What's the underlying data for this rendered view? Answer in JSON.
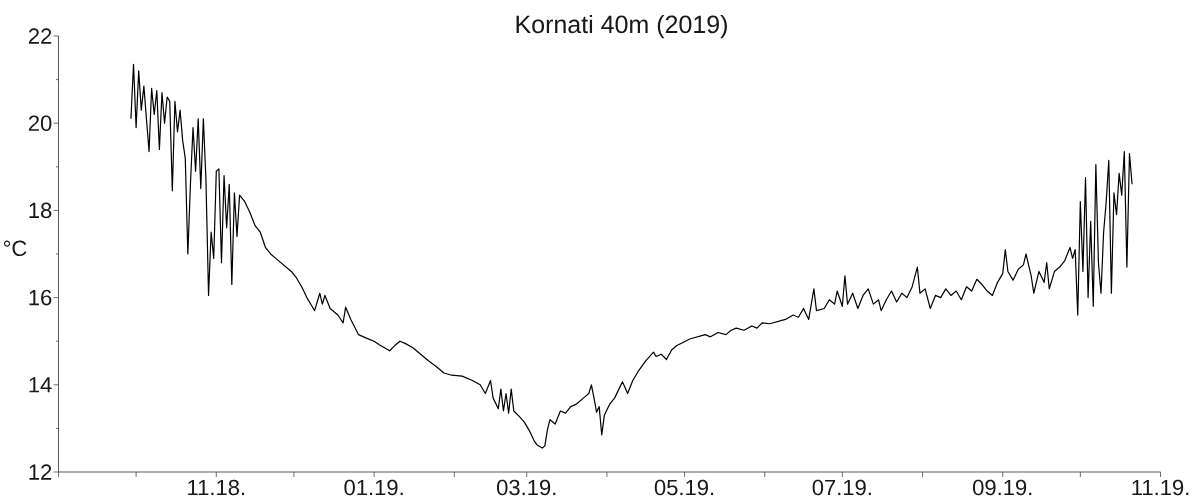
{
  "chart_data": {
    "type": "line",
    "title": "Kornati 40m (2019)",
    "ylabel": "°C",
    "x": [
      "2018-09-29",
      "2018-09-30",
      "2018-10-01",
      "2018-10-02",
      "2018-10-03",
      "2018-10-04",
      "2018-10-05",
      "2018-10-06",
      "2018-10-07",
      "2018-10-08",
      "2018-10-09",
      "2018-10-10",
      "2018-10-11",
      "2018-10-12",
      "2018-10-13",
      "2018-10-14",
      "2018-10-15",
      "2018-10-16",
      "2018-10-17",
      "2018-10-18",
      "2018-10-19",
      "2018-10-20",
      "2018-10-21",
      "2018-10-22",
      "2018-10-23",
      "2018-10-24",
      "2018-10-25",
      "2018-10-26",
      "2018-10-27",
      "2018-10-28",
      "2018-10-29",
      "2018-10-30",
      "2018-10-31",
      "2018-11-01",
      "2018-11-02",
      "2018-11-03",
      "2018-11-04",
      "2018-11-05",
      "2018-11-06",
      "2018-11-07",
      "2018-11-08",
      "2018-11-09",
      "2018-11-10",
      "2018-11-12",
      "2018-11-14",
      "2018-11-16",
      "2018-11-18",
      "2018-11-20",
      "2018-11-22",
      "2018-11-24",
      "2018-11-27",
      "2018-11-30",
      "2018-12-02",
      "2018-12-04",
      "2018-12-06",
      "2018-12-08",
      "2018-12-09",
      "2018-12-11",
      "2018-12-12",
      "2018-12-13",
      "2018-12-15",
      "2018-12-18",
      "2018-12-20",
      "2018-12-21",
      "2018-12-23",
      "2018-12-26",
      "2018-12-29",
      "2019-01-01",
      "2019-01-03",
      "2019-01-05",
      "2019-01-07",
      "2019-01-09",
      "2019-01-11",
      "2019-01-13",
      "2019-01-16",
      "2019-01-19",
      "2019-01-22",
      "2019-01-25",
      "2019-01-28",
      "2019-01-31",
      "2019-02-04",
      "2019-02-08",
      "2019-02-11",
      "2019-02-13",
      "2019-02-15",
      "2019-02-16",
      "2019-02-18",
      "2019-02-19",
      "2019-02-20",
      "2019-02-21",
      "2019-02-22",
      "2019-02-23",
      "2019-02-24",
      "2019-02-26",
      "2019-02-28",
      "2019-03-02",
      "2019-03-04",
      "2019-03-05",
      "2019-03-07",
      "2019-03-08",
      "2019-03-09",
      "2019-03-10",
      "2019-03-12",
      "2019-03-14",
      "2019-03-16",
      "2019-03-18",
      "2019-03-20",
      "2019-03-23",
      "2019-03-25",
      "2019-03-26",
      "2019-03-27",
      "2019-03-28",
      "2019-03-29",
      "2019-03-30",
      "2019-03-31",
      "2019-04-02",
      "2019-04-04",
      "2019-04-07",
      "2019-04-09",
      "2019-04-11",
      "2019-04-13",
      "2019-04-16",
      "2019-04-19",
      "2019-04-20",
      "2019-04-22",
      "2019-04-24",
      "2019-04-26",
      "2019-04-28",
      "2019-04-30",
      "2019-05-03",
      "2019-05-06",
      "2019-05-09",
      "2019-05-11",
      "2019-05-14",
      "2019-05-17",
      "2019-05-19",
      "2019-05-21",
      "2019-05-24",
      "2019-05-27",
      "2019-05-29",
      "2019-05-31",
      "2019-06-03",
      "2019-06-06",
      "2019-06-09",
      "2019-06-12",
      "2019-06-14",
      "2019-06-16",
      "2019-06-18",
      "2019-06-20",
      "2019-06-21",
      "2019-06-24",
      "2019-06-26",
      "2019-06-28",
      "2019-06-29",
      "2019-07-01",
      "2019-07-02",
      "2019-07-03",
      "2019-07-05",
      "2019-07-07",
      "2019-07-09",
      "2019-07-11",
      "2019-07-13",
      "2019-07-15",
      "2019-07-16",
      "2019-07-18",
      "2019-07-20",
      "2019-07-22",
      "2019-07-24",
      "2019-07-26",
      "2019-07-28",
      "2019-07-30",
      "2019-07-31",
      "2019-08-02",
      "2019-08-04",
      "2019-08-06",
      "2019-08-08",
      "2019-08-10",
      "2019-08-12",
      "2019-08-14",
      "2019-08-16",
      "2019-08-18",
      "2019-08-20",
      "2019-08-22",
      "2019-08-24",
      "2019-08-26",
      "2019-08-28",
      "2019-08-30",
      "2019-09-01",
      "2019-09-02",
      "2019-09-03",
      "2019-09-05",
      "2019-09-07",
      "2019-09-09",
      "2019-09-10",
      "2019-09-12",
      "2019-09-13",
      "2019-09-15",
      "2019-09-17",
      "2019-09-18",
      "2019-09-19",
      "2019-09-21",
      "2019-09-23",
      "2019-09-25",
      "2019-09-27",
      "2019-09-28",
      "2019-09-29",
      "2019-09-30",
      "2019-10-01",
      "2019-10-02",
      "2019-10-03",
      "2019-10-04",
      "2019-10-05",
      "2019-10-06",
      "2019-10-07",
      "2019-10-08",
      "2019-10-09",
      "2019-10-10",
      "2019-10-11",
      "2019-10-12",
      "2019-10-13",
      "2019-10-14",
      "2019-10-15",
      "2019-10-16",
      "2019-10-17",
      "2019-10-18",
      "2019-10-19",
      "2019-10-20",
      "2019-10-21"
    ],
    "series": [
      {
        "color": "#000000",
        "values": [
          20.1,
          21.35,
          19.9,
          21.2,
          20.3,
          20.85,
          20.1,
          19.35,
          20.8,
          20.2,
          20.75,
          19.4,
          20.7,
          20.0,
          20.6,
          20.5,
          18.45,
          20.5,
          19.8,
          20.3,
          19.6,
          19.2,
          17.0,
          18.6,
          19.9,
          18.9,
          20.1,
          18.5,
          20.1,
          18.7,
          16.05,
          17.5,
          16.9,
          18.9,
          18.95,
          16.8,
          18.8,
          17.6,
          18.6,
          16.3,
          18.4,
          17.4,
          18.35,
          18.2,
          17.95,
          17.65,
          17.5,
          17.15,
          17.0,
          16.9,
          16.75,
          16.6,
          16.45,
          16.25,
          16.0,
          15.8,
          15.7,
          16.1,
          15.85,
          16.05,
          15.75,
          15.6,
          15.42,
          15.78,
          15.5,
          15.15,
          15.07,
          15.0,
          14.92,
          14.85,
          14.78,
          14.9,
          15.0,
          14.95,
          14.85,
          14.7,
          14.55,
          14.42,
          14.27,
          14.22,
          14.2,
          14.1,
          14.0,
          13.8,
          14.1,
          13.7,
          13.45,
          13.9,
          13.4,
          13.8,
          13.35,
          13.9,
          13.4,
          13.28,
          13.15,
          12.95,
          12.7,
          12.62,
          12.55,
          12.6,
          12.97,
          13.2,
          13.1,
          13.4,
          13.35,
          13.5,
          13.55,
          13.7,
          13.8,
          14.0,
          13.7,
          13.37,
          13.5,
          12.85,
          13.3,
          13.55,
          13.7,
          14.07,
          13.8,
          14.1,
          14.3,
          14.55,
          14.75,
          14.65,
          14.7,
          14.58,
          14.8,
          14.9,
          14.96,
          15.05,
          15.1,
          15.15,
          15.1,
          15.2,
          15.15,
          15.25,
          15.3,
          15.25,
          15.35,
          15.3,
          15.42,
          15.4,
          15.45,
          15.5,
          15.6,
          15.55,
          15.75,
          15.5,
          16.2,
          15.7,
          15.75,
          15.95,
          15.85,
          16.15,
          15.8,
          16.5,
          15.85,
          16.1,
          15.75,
          16.05,
          16.2,
          15.85,
          15.95,
          15.7,
          15.95,
          16.15,
          15.9,
          16.1,
          16.0,
          16.25,
          16.7,
          16.1,
          16.2,
          15.75,
          16.05,
          16.0,
          16.2,
          16.05,
          16.15,
          15.95,
          16.25,
          16.15,
          16.42,
          16.3,
          16.15,
          16.05,
          16.35,
          16.55,
          17.1,
          16.6,
          16.4,
          16.65,
          16.75,
          17.0,
          16.5,
          16.1,
          16.6,
          16.35,
          16.8,
          16.2,
          16.6,
          16.7,
          16.85,
          17.15,
          16.9,
          17.1,
          15.6,
          18.2,
          16.6,
          18.75,
          16.0,
          17.75,
          15.8,
          19.05,
          16.8,
          16.1,
          17.5,
          18.2,
          19.15,
          16.1,
          18.4,
          17.9,
          18.85,
          18.35,
          19.35,
          16.7,
          19.3,
          18.6
        ]
      }
    ],
    "xlim": [
      "2018-09-01",
      "2019-11-01"
    ],
    "xticks": [
      {
        "value": "2018-09-01",
        "label": null
      },
      {
        "value": "2018-10-01",
        "label": null
      },
      {
        "value": "2018-11-01",
        "label": "11.18."
      },
      {
        "value": "2018-12-01",
        "label": null
      },
      {
        "value": "2019-01-01",
        "label": "01.19."
      },
      {
        "value": "2019-02-01",
        "label": null
      },
      {
        "value": "2019-03-01",
        "label": "03.19."
      },
      {
        "value": "2019-04-01",
        "label": null
      },
      {
        "value": "2019-05-01",
        "label": "05.19."
      },
      {
        "value": "2019-06-01",
        "label": null
      },
      {
        "value": "2019-07-01",
        "label": "07.19."
      },
      {
        "value": "2019-08-01",
        "label": null
      },
      {
        "value": "2019-09-01",
        "label": "09.19."
      },
      {
        "value": "2019-10-01",
        "label": null
      },
      {
        "value": "2019-11-01",
        "label": "11.19."
      }
    ],
    "ylim": [
      12,
      22
    ],
    "yticks": [
      12,
      {
        "value": 13,
        "label": null
      },
      14,
      {
        "value": 15,
        "label": null
      },
      16,
      {
        "value": 17,
        "label": null
      },
      18,
      {
        "value": 19,
        "label": null
      },
      20,
      {
        "value": 21,
        "label": null
      },
      22
    ],
    "line_style": "solid"
  }
}
